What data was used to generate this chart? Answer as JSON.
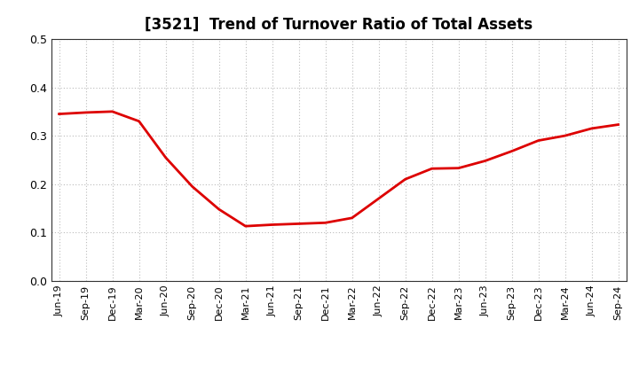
{
  "title": "[3521]  Trend of Turnover Ratio of Total Assets",
  "title_fontsize": 12,
  "line_color": "#dd0000",
  "line_width": 2.0,
  "background_color": "#ffffff",
  "grid_color": "#bbbbbb",
  "ylim": [
    0.0,
    0.5
  ],
  "yticks": [
    0.0,
    0.1,
    0.2,
    0.3,
    0.4,
    0.5
  ],
  "x_labels": [
    "Jun-19",
    "Sep-19",
    "Dec-19",
    "Mar-20",
    "Jun-20",
    "Sep-20",
    "Dec-20",
    "Mar-21",
    "Jun-21",
    "Sep-21",
    "Dec-21",
    "Mar-22",
    "Jun-22",
    "Sep-22",
    "Dec-22",
    "Mar-23",
    "Jun-23",
    "Sep-23",
    "Dec-23",
    "Mar-24",
    "Jun-24",
    "Sep-24"
  ],
  "values": [
    0.345,
    0.348,
    0.35,
    0.33,
    0.255,
    0.195,
    0.148,
    0.113,
    0.116,
    0.118,
    0.12,
    0.13,
    0.17,
    0.21,
    0.232,
    0.233,
    0.248,
    0.268,
    0.29,
    0.3,
    0.315,
    0.323
  ]
}
